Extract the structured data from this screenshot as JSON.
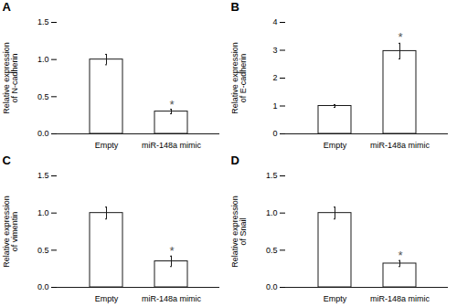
{
  "chart_data": [
    {
      "type": "bar",
      "title": "A",
      "ylabel": "Relative expression\nof N-cadherin",
      "categories": [
        "Empty",
        "miR-148a mimic"
      ],
      "values": [
        1.0,
        0.3
      ],
      "errors": [
        0.07,
        0.03
      ],
      "color": "#ffffff",
      "ylim": [
        0,
        1.5
      ],
      "yticks": [
        {
          "value": 0,
          "label": "0.0"
        },
        0.5,
        {
          "value": 1,
          "label": "1.0"
        },
        1.5
      ],
      "annotations": [
        {
          "text": "*",
          "x": "miR-148a mimic",
          "y": 0.34,
          "color": "#555555"
        }
      ]
    },
    {
      "type": "bar",
      "title": "B",
      "ylabel": "Relative expression\nof E-cadherin",
      "categories": [
        "Empty",
        "miR-148a mimic"
      ],
      "values": [
        1.0,
        2.97
      ],
      "errors": [
        0.05,
        0.28
      ],
      "color": "#ffffff",
      "ylim": [
        0,
        4
      ],
      "yticks": [
        0,
        1,
        2,
        3,
        4
      ],
      "annotations": [
        {
          "text": "*",
          "x": "miR-148a mimic",
          "y": 3.32,
          "color": "#555555"
        }
      ]
    },
    {
      "type": "bar",
      "title": "C",
      "ylabel": "Relative expression\nof vimentin",
      "categories": [
        "Empty",
        "miR-148a mimic"
      ],
      "values": [
        1.0,
        0.35
      ],
      "errors": [
        0.08,
        0.07
      ],
      "color": "#ffffff",
      "ylim": [
        0,
        1.5
      ],
      "yticks": [
        {
          "value": 0,
          "label": "0.0"
        },
        0.5,
        {
          "value": 1,
          "label": "1.0"
        },
        1.5
      ],
      "annotations": [
        {
          "text": "*",
          "x": "miR-148a mimic",
          "y": 0.44,
          "color": "#555555"
        }
      ]
    },
    {
      "type": "bar",
      "title": "D",
      "ylabel": "Relative expression\nof Snail",
      "categories": [
        "Empty",
        "miR-148a mimic"
      ],
      "values": [
        1.0,
        0.32
      ],
      "errors": [
        0.08,
        0.04
      ],
      "color": "#ffffff",
      "ylim": [
        0,
        1.5
      ],
      "yticks": [
        {
          "value": 0,
          "label": "0.0"
        },
        0.5,
        {
          "value": 1,
          "label": "1.0"
        },
        1.5
      ],
      "annotations": [
        {
          "text": "*",
          "x": "miR-148a mimic",
          "y": 0.38,
          "color": "#555555"
        }
      ]
    }
  ]
}
